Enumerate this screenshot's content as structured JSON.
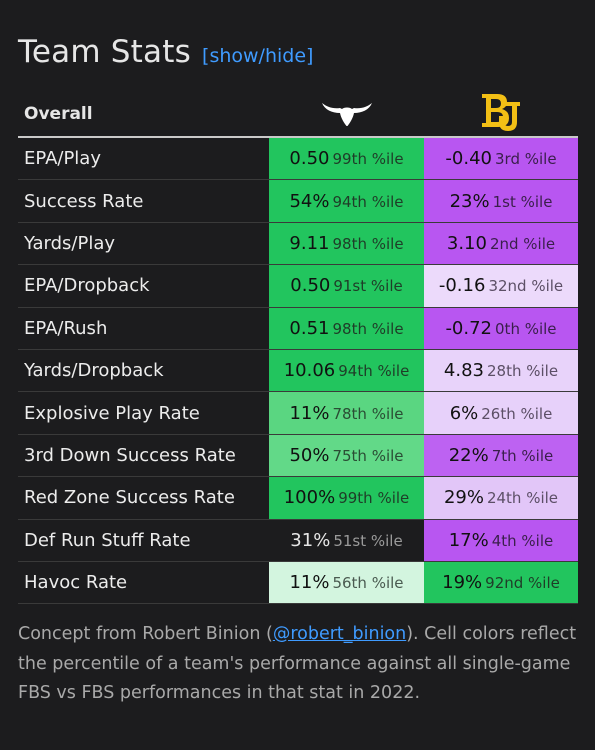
{
  "header": {
    "title": "Team Stats",
    "toggle_label": "[show/hide]"
  },
  "table": {
    "overall_label": "Overall",
    "team1_logo_icon": "longhorn-logo-icon",
    "team2_logo_icon": "bu-logo-icon",
    "rows": [
      {
        "label": "EPA/Play",
        "t1": {
          "value": "0.50",
          "pct": "99th %ile",
          "bg": "#22c55e",
          "fg": "#111111",
          "pfg": "#1f3d28"
        },
        "t2": {
          "value": "-0.40",
          "pct": "3rd %ile",
          "bg": "#b856f1",
          "fg": "#111111",
          "pfg": "#3a1f4b"
        }
      },
      {
        "label": "Success Rate",
        "t1": {
          "value": "54%",
          "pct": "94th %ile",
          "bg": "#22c55e",
          "fg": "#111111",
          "pfg": "#1f3d28"
        },
        "t2": {
          "value": "23%",
          "pct": "1st %ile",
          "bg": "#b856f1",
          "fg": "#111111",
          "pfg": "#3a1f4b"
        }
      },
      {
        "label": "Yards/Play",
        "t1": {
          "value": "9.11",
          "pct": "98th %ile",
          "bg": "#22c55e",
          "fg": "#111111",
          "pfg": "#1f3d28"
        },
        "t2": {
          "value": "3.10",
          "pct": "2nd %ile",
          "bg": "#b856f1",
          "fg": "#111111",
          "pfg": "#3a1f4b"
        }
      },
      {
        "label": "EPA/Dropback",
        "t1": {
          "value": "0.50",
          "pct": "91st %ile",
          "bg": "#22c55e",
          "fg": "#111111",
          "pfg": "#1f3d28"
        },
        "t2": {
          "value": "-0.16",
          "pct": "32nd %ile",
          "bg": "#ecdafb",
          "fg": "#111111",
          "pfg": "#5c4f66"
        }
      },
      {
        "label": "EPA/Rush",
        "t1": {
          "value": "0.51",
          "pct": "98th %ile",
          "bg": "#22c55e",
          "fg": "#111111",
          "pfg": "#1f3d28"
        },
        "t2": {
          "value": "-0.72",
          "pct": "0th %ile",
          "bg": "#b856f1",
          "fg": "#111111",
          "pfg": "#3a1f4b"
        }
      },
      {
        "label": "Yards/Dropback",
        "t1": {
          "value": "10.06",
          "pct": "94th %ile",
          "bg": "#22c55e",
          "fg": "#111111",
          "pfg": "#1f3d28"
        },
        "t2": {
          "value": "4.83",
          "pct": "28th %ile",
          "bg": "#e8d3fa",
          "fg": "#111111",
          "pfg": "#5c4f66"
        }
      },
      {
        "label": "Explosive Play Rate",
        "t1": {
          "value": "11%",
          "pct": "78th %ile",
          "bg": "#5ad681",
          "fg": "#111111",
          "pfg": "#2a4d34"
        },
        "t2": {
          "value": "6%",
          "pct": "26th %ile",
          "bg": "#e7d1fa",
          "fg": "#111111",
          "pfg": "#5c4f66"
        }
      },
      {
        "label": "3rd Down Success Rate",
        "t1": {
          "value": "50%",
          "pct": "75th %ile",
          "bg": "#62d988",
          "fg": "#111111",
          "pfg": "#2a4d34"
        },
        "t2": {
          "value": "22%",
          "pct": "7th %ile",
          "bg": "#bd62f2",
          "fg": "#111111",
          "pfg": "#3a1f4b"
        }
      },
      {
        "label": "Red Zone Success Rate",
        "t1": {
          "value": "100%",
          "pct": "99th %ile",
          "bg": "#22c55e",
          "fg": "#111111",
          "pfg": "#1f3d28"
        },
        "t2": {
          "value": "29%",
          "pct": "24th %ile",
          "bg": "#e2c6f8",
          "fg": "#111111",
          "pfg": "#5c4f66"
        }
      },
      {
        "label": "Def Run Stuff Rate",
        "t1": {
          "value": "31%",
          "pct": "51st %ile",
          "bg": "#1c1c1e",
          "fg": "#e6e6e6",
          "pfg": "#9a9a9a"
        },
        "t2": {
          "value": "17%",
          "pct": "4th %ile",
          "bg": "#b856f1",
          "fg": "#111111",
          "pfg": "#3a1f4b"
        }
      },
      {
        "label": "Havoc Rate",
        "t1": {
          "value": "11%",
          "pct": "56th %ile",
          "bg": "#d3f5df",
          "fg": "#111111",
          "pfg": "#4a5a50"
        },
        "t2": {
          "value": "19%",
          "pct": "92nd %ile",
          "bg": "#22c55e",
          "fg": "#111111",
          "pfg": "#1f3d28"
        }
      }
    ]
  },
  "footnote": {
    "pre": "Concept from Robert Binion (",
    "link": "@robert_binion",
    "post": "). Cell colors reflect the percentile of a team's performance against all single-game FBS vs FBS performances in that stat in 2022."
  },
  "colors": {
    "background": "#1c1c1e",
    "link": "#3f9bff",
    "baylor_gold": "#f2bf15"
  }
}
